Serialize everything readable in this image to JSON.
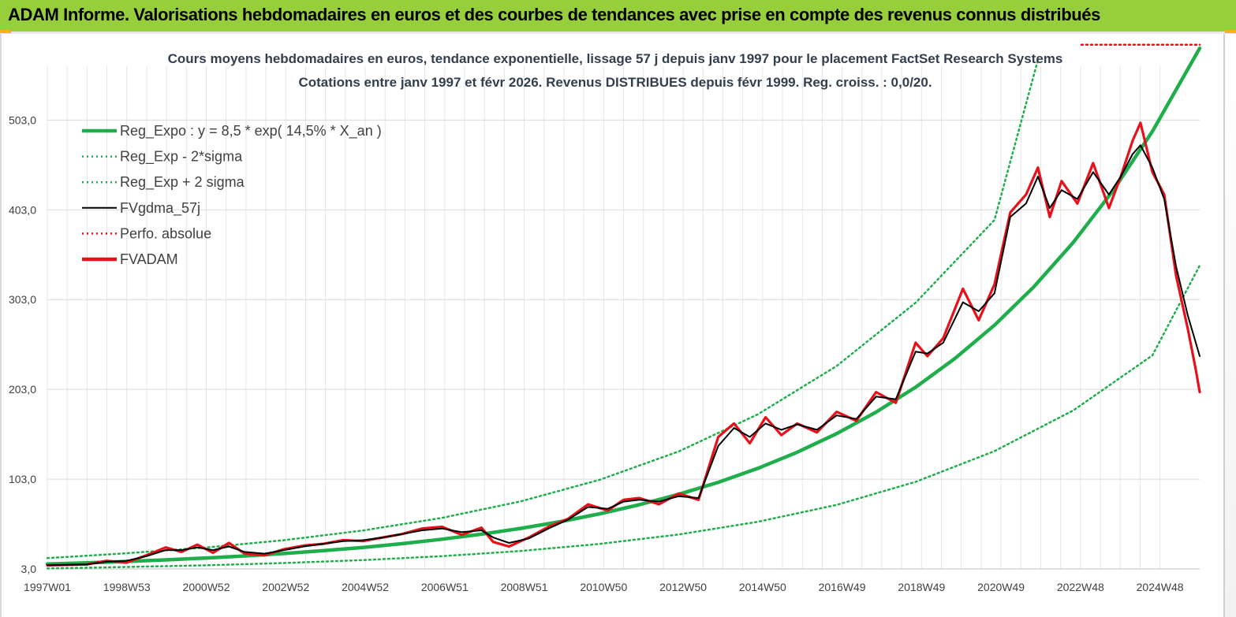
{
  "banner": {
    "title": "ADAM Informe. Valorisations hebdomadaires en euros et des courbes de tendances avec prise en compte des revenus connus distribués",
    "color": "#97cf3c",
    "accent": "#f2b705"
  },
  "chart_data": {
    "type": "line",
    "title": "Cours moyens hebdomadaires en euros, tendance exponentielle, lissage 57 j depuis janv 1997 pour le placement FactSet Research Systems",
    "subtitle": "Cotations entre janv 1997 et févr 2026. Revenus DISTRIBUES depuis févr 1999. Reg. croiss. : 0,0/20.",
    "xlabel": "",
    "ylabel": "",
    "x_ticks": [
      "1997W01",
      "1998W53",
      "2000W52",
      "2002W52",
      "2004W52",
      "2006W51",
      "2008W51",
      "2010W50",
      "2012W50",
      "2014W50",
      "2016W49",
      "2018W49",
      "2020W49",
      "2022W48",
      "2024W48"
    ],
    "y_ticks": [
      "3,0",
      "103,0",
      "203,0",
      "303,0",
      "403,0",
      "503,0"
    ],
    "ylim": [
      3,
      563
    ],
    "xlim": [
      1997.0,
      2026.2
    ],
    "grid": true,
    "legend_position": "top-left",
    "legend": [
      {
        "label": "Reg_Expo : y = 8,5 * exp( 14,5% *  X_an )",
        "color": "#1fae4b",
        "style": "solid-thick"
      },
      {
        "label": "Reg_Exp - 2*sigma",
        "color": "#1fae4b",
        "style": "dotted"
      },
      {
        "label": "Reg_Exp + 2 sigma",
        "color": "#1fae4b",
        "style": "dotted"
      },
      {
        "label": "FVgdma_57j",
        "color": "#000000",
        "style": "solid"
      },
      {
        "label": "Perfo. absolue",
        "color": "#e8101a",
        "style": "dotted"
      },
      {
        "label": "FVADAM",
        "color": "#e8101a",
        "style": "solid-thick"
      }
    ],
    "series": [
      {
        "name": "Reg_Expo : y = 8,5 * exp( 14,5% *  X_an )",
        "x": [
          1997,
          1998,
          1999,
          2000,
          2001,
          2002,
          2003,
          2004,
          2005,
          2006,
          2007,
          2008,
          2009,
          2010,
          2011,
          2012,
          2013,
          2014,
          2015,
          2016,
          2017,
          2018,
          2019,
          2020,
          2021,
          2022,
          2023,
          2024,
          2025,
          2026.2
        ],
        "y": [
          8.5,
          9.8,
          11.3,
          13.1,
          15.1,
          17.5,
          20.2,
          23.4,
          27.0,
          31.2,
          36.1,
          41.7,
          48.2,
          55.7,
          64.4,
          74.5,
          86.1,
          99.5,
          115.0,
          133.0,
          153.7,
          177.7,
          205.4,
          237.5,
          274.5,
          317.4,
          366.9,
          424.1,
          490.3,
          583.0
        ]
      },
      {
        "name": "Reg_Exp - 2*sigma",
        "x": [
          1997,
          1999,
          2001,
          2003,
          2005,
          2007,
          2009,
          2011,
          2013,
          2015,
          2017,
          2019,
          2021,
          2023,
          2025,
          2026.2
        ],
        "y": [
          3.5,
          5.2,
          7.0,
          9.6,
          12.8,
          17.2,
          23.0,
          30.9,
          41.4,
          55.5,
          74.4,
          100.0,
          134.2,
          179.7,
          240.9,
          341.0
        ]
      },
      {
        "name": "Reg_Exp + 2 sigma",
        "x": [
          1997,
          1999,
          2001,
          2003,
          2005,
          2007,
          2009,
          2011,
          2013,
          2015,
          2017,
          2019,
          2021,
          2022.1
        ],
        "y": [
          15.0,
          20.5,
          26.8,
          35.0,
          45.8,
          59.9,
          78.3,
          102.4,
          133.9,
          175.1,
          229.0,
          299.5,
          391.7,
          570.0
        ]
      },
      {
        "name": "Perfo. absolue",
        "x": [
          2023.2,
          2026.2
        ],
        "y": [
          587,
          587
        ]
      },
      {
        "name": "FVADAM",
        "x": [
          1997,
          1998,
          1998.5,
          1999,
          1999.5,
          2000,
          2000.4,
          2000.8,
          2001.2,
          2001.6,
          2002,
          2002.5,
          2003,
          2003.5,
          2004,
          2004.5,
          2005,
          2005.5,
          2006,
          2006.5,
          2007,
          2007.5,
          2008,
          2008.3,
          2008.7,
          2009.2,
          2009.7,
          2010.2,
          2010.7,
          2011.2,
          2011.6,
          2012,
          2012.5,
          2013,
          2013.5,
          2014,
          2014.4,
          2014.8,
          2015.2,
          2015.6,
          2016,
          2016.5,
          2017,
          2017.5,
          2018,
          2018.5,
          2019,
          2019.3,
          2019.7,
          2020.2,
          2020.6,
          2021,
          2021.4,
          2021.8,
          2022.1,
          2022.4,
          2022.7,
          2023.1,
          2023.5,
          2023.9,
          2024.2,
          2024.5,
          2024.7,
          2025,
          2025.3,
          2025.6,
          2025.9,
          2026.1,
          2026.2
        ],
        "y": [
          7,
          8,
          12,
          10,
          18,
          27,
          22,
          30,
          21,
          32,
          20,
          18,
          25,
          29,
          31,
          35,
          34,
          38,
          42,
          48,
          50,
          41,
          49,
          33,
          28,
          38,
          50,
          59,
          75,
          68,
          80,
          82,
          75,
          87,
          80,
          150,
          165,
          143,
          172,
          152,
          165,
          155,
          178,
          168,
          200,
          188,
          255,
          240,
          260,
          315,
          280,
          320,
          400,
          420,
          450,
          395,
          435,
          410,
          455,
          405,
          440,
          480,
          500,
          445,
          420,
          330,
          270,
          225,
          200
        ]
      },
      {
        "name": "FVgdma_57j",
        "x": [
          1997,
          1998,
          1998.5,
          1999,
          1999.5,
          2000,
          2000.4,
          2000.8,
          2001.2,
          2001.6,
          2002,
          2002.5,
          2003,
          2003.5,
          2004,
          2004.5,
          2005,
          2005.5,
          2006,
          2006.5,
          2007,
          2007.5,
          2008,
          2008.3,
          2008.7,
          2009.2,
          2009.7,
          2010.2,
          2010.7,
          2011.2,
          2011.6,
          2012,
          2012.5,
          2013,
          2013.5,
          2014,
          2014.4,
          2014.8,
          2015.2,
          2015.6,
          2016,
          2016.5,
          2017,
          2017.5,
          2018,
          2018.5,
          2019,
          2019.3,
          2019.7,
          2020.2,
          2020.6,
          2021,
          2021.4,
          2021.8,
          2022.1,
          2022.4,
          2022.7,
          2023.1,
          2023.5,
          2023.9,
          2024.2,
          2024.5,
          2024.7,
          2025,
          2025.3,
          2025.6,
          2025.9,
          2026.1,
          2026.2
        ],
        "y": [
          7,
          8,
          11,
          12,
          17,
          24,
          24,
          27,
          24,
          28,
          22,
          20,
          24,
          28,
          31,
          34,
          35,
          38,
          42,
          46,
          48,
          44,
          46,
          38,
          32,
          37,
          48,
          58,
          72,
          70,
          78,
          80,
          78,
          84,
          82,
          140,
          160,
          150,
          165,
          158,
          164,
          158,
          174,
          170,
          195,
          192,
          245,
          243,
          255,
          300,
          290,
          310,
          395,
          410,
          440,
          405,
          425,
          415,
          445,
          420,
          440,
          465,
          475,
          450,
          415,
          340,
          285,
          255,
          240
        ]
      }
    ]
  }
}
